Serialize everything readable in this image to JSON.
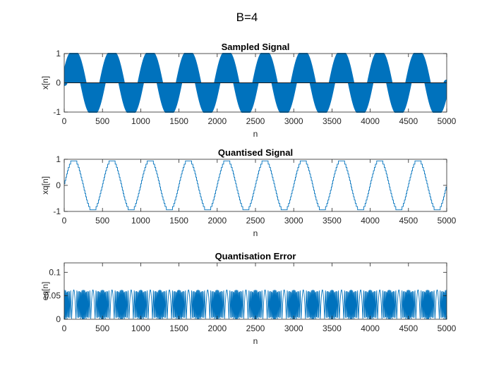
{
  "figure": {
    "title": "B=4"
  },
  "chart_data": [
    {
      "type": "line",
      "title": "Sampled Signal",
      "xlabel": "n",
      "ylabel": "x[n]",
      "xlim": [
        0,
        5000
      ],
      "ylim": [
        -1,
        1
      ],
      "xticks": [
        0,
        500,
        1000,
        1500,
        2000,
        2500,
        3000,
        3500,
        4000,
        4500,
        5000
      ],
      "yticks": [
        -1,
        0,
        1
      ],
      "grid": false,
      "color": "#0072BD",
      "marker": "filled-circle",
      "series": [
        {
          "signal": "sin",
          "amplitude": 1.0,
          "period": 500,
          "n_start": 0,
          "n_end": 5000,
          "n_step": 1
        }
      ]
    },
    {
      "type": "line",
      "title": "Quantised Signal",
      "xlabel": "n",
      "ylabel": "xq[n]",
      "xlim": [
        0,
        5000
      ],
      "ylim": [
        -1,
        1
      ],
      "xticks": [
        0,
        500,
        1000,
        1500,
        2000,
        2500,
        3000,
        3500,
        4000,
        4500,
        5000
      ],
      "yticks": [
        -1,
        0,
        1
      ],
      "grid": false,
      "color": "#0072BD",
      "series": [
        {
          "signal": "quantised-sin",
          "bits": 4,
          "period": 500,
          "n_start": 0,
          "n_end": 5000,
          "n_step": 1
        }
      ]
    },
    {
      "type": "line",
      "title": "Quantisation Error",
      "xlabel": "n",
      "ylabel": "eq[n]",
      "xlim": [
        0,
        5000
      ],
      "ylim": [
        0,
        0.12
      ],
      "xticks": [
        0,
        500,
        1000,
        1500,
        2000,
        2500,
        3000,
        3500,
        4000,
        4500,
        5000
      ],
      "yticks": [
        0,
        0.05,
        0.1
      ],
      "grid": false,
      "color": "#0072BD",
      "series": [
        {
          "signal": "abs-quantisation-error",
          "bits": 4,
          "period": 500,
          "n_start": 0,
          "n_end": 5000,
          "n_step": 1
        }
      ]
    }
  ]
}
